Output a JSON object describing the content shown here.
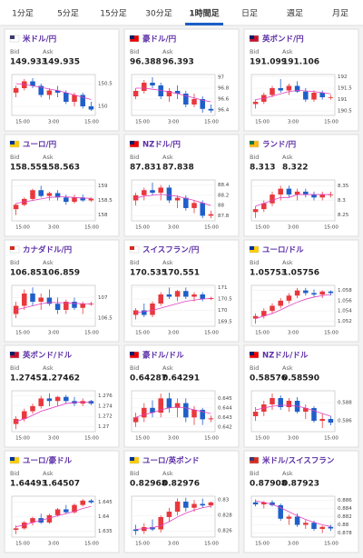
{
  "tabs": [
    "1分足",
    "5分足",
    "15分足",
    "30分足",
    "1時間足",
    "日足",
    "週足",
    "月足"
  ],
  "active_tab": 4,
  "bid_label": "Bid",
  "ask_label": "Ask",
  "x_labels": [
    "15:00",
    "3:00",
    "15:00"
  ],
  "up_color": "#e8383d",
  "down_color": "#1f5fc9",
  "ma_color": "#e040c0",
  "pairs": [
    {
      "name": "米ドル/円",
      "bid": "149.933",
      "ask": "149.935",
      "ylim": [
        149.8,
        150.7
      ],
      "yticks": [
        150,
        150.5
      ],
      "candles": [
        [
          150.3,
          150.45,
          150.2,
          150.4
        ],
        [
          150.4,
          150.6,
          150.35,
          150.55
        ],
        [
          150.55,
          150.62,
          150.4,
          150.45
        ],
        [
          150.45,
          150.5,
          150.2,
          150.25
        ],
        [
          150.25,
          150.4,
          150.15,
          150.35
        ],
        [
          150.35,
          150.45,
          150.2,
          150.3
        ],
        [
          150.3,
          150.35,
          150.05,
          150.1
        ],
        [
          150.1,
          150.3,
          150.0,
          150.25
        ],
        [
          150.25,
          150.3,
          149.95,
          150.0
        ],
        [
          150.0,
          150.1,
          149.9,
          149.93
        ]
      ],
      "ma": [
        150.5,
        150.48,
        150.45,
        150.42,
        150.38,
        150.35,
        150.3,
        150.25,
        150.2,
        150.15
      ]
    },
    {
      "name": "豪ドル/円",
      "bid": "96.388",
      "ask": "96.393",
      "ylim": [
        96.3,
        97.05
      ],
      "yticks": [
        96.4,
        96.6,
        96.8,
        97
      ],
      "candles": [
        [
          96.65,
          96.8,
          96.6,
          96.75
        ],
        [
          96.75,
          96.95,
          96.7,
          96.9
        ],
        [
          96.9,
          97.0,
          96.8,
          96.85
        ],
        [
          96.85,
          96.9,
          96.6,
          96.65
        ],
        [
          96.65,
          96.8,
          96.55,
          96.75
        ],
        [
          96.75,
          96.85,
          96.6,
          96.7
        ],
        [
          96.7,
          96.75,
          96.45,
          96.5
        ],
        [
          96.5,
          96.7,
          96.45,
          96.6
        ],
        [
          96.6,
          96.65,
          96.35,
          96.42
        ],
        [
          96.42,
          96.5,
          96.35,
          96.39
        ]
      ],
      "ma": [
        96.8,
        96.8,
        96.78,
        96.76,
        96.73,
        96.7,
        96.66,
        96.62,
        96.58,
        96.55
      ]
    },
    {
      "name": "英ポンド/円",
      "bid": "191.099",
      "ask": "191.106",
      "ylim": [
        190.3,
        192.1
      ],
      "yticks": [
        190.5,
        191,
        191.5,
        192
      ],
      "candles": [
        [
          190.8,
          191.0,
          190.6,
          190.9
        ],
        [
          190.9,
          191.3,
          190.8,
          191.2
        ],
        [
          191.2,
          191.6,
          191.1,
          191.5
        ],
        [
          191.5,
          191.9,
          191.3,
          191.4
        ],
        [
          191.4,
          191.7,
          191.2,
          191.6
        ],
        [
          191.6,
          191.8,
          191.3,
          191.35
        ],
        [
          191.35,
          191.5,
          190.9,
          191.0
        ],
        [
          191.0,
          191.4,
          190.9,
          191.3
        ],
        [
          191.3,
          191.4,
          191.0,
          191.1
        ],
        [
          191.1,
          191.2,
          191.0,
          191.1
        ]
      ],
      "ma": [
        191.0,
        191.05,
        191.15,
        191.25,
        191.35,
        191.4,
        191.38,
        191.35,
        191.3,
        191.25
      ]
    },
    {
      "name": "ユーロ/円",
      "bid": "158.559",
      "ask": "158.563",
      "ylim": [
        157.8,
        159.2
      ],
      "yticks": [
        158,
        158.5,
        159
      ],
      "candles": [
        [
          158.2,
          158.4,
          158.0,
          158.35
        ],
        [
          158.35,
          158.6,
          158.3,
          158.55
        ],
        [
          158.55,
          158.9,
          158.5,
          158.85
        ],
        [
          158.85,
          159.0,
          158.6,
          158.65
        ],
        [
          158.65,
          158.8,
          158.5,
          158.75
        ],
        [
          158.75,
          158.85,
          158.5,
          158.6
        ],
        [
          158.6,
          158.7,
          158.35,
          158.45
        ],
        [
          158.45,
          158.7,
          158.4,
          158.6
        ],
        [
          158.6,
          158.7,
          158.45,
          158.5
        ],
        [
          158.5,
          158.6,
          158.45,
          158.56
        ]
      ],
      "ma": [
        158.4,
        158.45,
        158.5,
        158.55,
        158.6,
        158.62,
        158.62,
        158.6,
        158.58,
        158.57
      ]
    },
    {
      "name": "NZドル/円",
      "bid": "87.831",
      "ask": "87.838",
      "ylim": [
        87.7,
        88.5
      ],
      "yticks": [
        87.8,
        88,
        88.2,
        88.4
      ],
      "candles": [
        [
          88.1,
          88.25,
          88.0,
          88.2
        ],
        [
          88.2,
          88.35,
          88.1,
          88.3
        ],
        [
          88.3,
          88.45,
          88.2,
          88.25
        ],
        [
          88.25,
          88.4,
          88.1,
          88.35
        ],
        [
          88.35,
          88.4,
          88.05,
          88.1
        ],
        [
          88.1,
          88.2,
          87.95,
          88.15
        ],
        [
          88.15,
          88.2,
          87.9,
          87.95
        ],
        [
          87.95,
          88.1,
          87.85,
          88.05
        ],
        [
          88.05,
          88.1,
          87.75,
          87.8
        ],
        [
          87.8,
          87.9,
          87.75,
          87.83
        ]
      ],
      "ma": [
        88.15,
        88.18,
        88.2,
        88.22,
        88.2,
        88.18,
        88.14,
        88.1,
        88.05,
        88.0
      ]
    },
    {
      "name": "ランド/円",
      "bid": "8.313",
      "ask": "8.322",
      "ylim": [
        8.23,
        8.37
      ],
      "yticks": [
        8.25,
        8.3,
        8.35
      ],
      "candles": [
        [
          8.26,
          8.28,
          8.24,
          8.27
        ],
        [
          8.27,
          8.3,
          8.26,
          8.29
        ],
        [
          8.29,
          8.33,
          8.28,
          8.32
        ],
        [
          8.32,
          8.35,
          8.3,
          8.34
        ],
        [
          8.34,
          8.35,
          8.31,
          8.32
        ],
        [
          8.32,
          8.34,
          8.3,
          8.33
        ],
        [
          8.33,
          8.34,
          8.31,
          8.32
        ],
        [
          8.32,
          8.33,
          8.3,
          8.31
        ],
        [
          8.31,
          8.33,
          8.3,
          8.32
        ],
        [
          8.32,
          8.33,
          8.31,
          8.32
        ]
      ],
      "ma": [
        8.28,
        8.29,
        8.3,
        8.31,
        8.31,
        8.32,
        8.32,
        8.32,
        8.32,
        8.32
      ]
    },
    {
      "name": "カナダドル/円",
      "bid": "106.853",
      "ask": "106.859",
      "ylim": [
        106.3,
        107.3
      ],
      "yticks": [
        106.5,
        107
      ],
      "candles": [
        [
          106.6,
          106.9,
          106.5,
          106.8
        ],
        [
          106.8,
          107.2,
          106.7,
          107.1
        ],
        [
          107.1,
          107.25,
          106.8,
          106.9
        ],
        [
          106.9,
          107.1,
          106.7,
          107.0
        ],
        [
          107.0,
          107.2,
          106.8,
          106.85
        ],
        [
          106.85,
          107.0,
          106.6,
          106.7
        ],
        [
          106.7,
          106.95,
          106.6,
          106.9
        ],
        [
          106.9,
          107.0,
          106.7,
          106.75
        ],
        [
          106.75,
          106.9,
          106.6,
          106.85
        ],
        [
          106.85,
          106.9,
          106.8,
          106.85
        ]
      ],
      "ma": [
        106.7,
        106.75,
        106.8,
        106.85,
        106.88,
        106.88,
        106.87,
        106.86,
        106.85,
        106.85
      ]
    },
    {
      "name": "スイスフラン/円",
      "bid": "170.535",
      "ask": "170.551",
      "ylim": [
        169.3,
        171.1
      ],
      "yticks": [
        169.5,
        170,
        170.5,
        171
      ],
      "candles": [
        [
          169.8,
          170.1,
          169.6,
          170.0
        ],
        [
          170.0,
          170.3,
          169.7,
          169.8
        ],
        [
          169.8,
          170.4,
          169.7,
          170.3
        ],
        [
          170.3,
          170.8,
          170.2,
          170.7
        ],
        [
          170.7,
          171.0,
          170.5,
          170.6
        ],
        [
          170.6,
          170.9,
          170.4,
          170.85
        ],
        [
          170.85,
          171.0,
          170.5,
          170.6
        ],
        [
          170.6,
          170.8,
          170.4,
          170.7
        ],
        [
          170.7,
          170.8,
          170.4,
          170.5
        ],
        [
          170.5,
          170.6,
          170.45,
          170.54
        ]
      ],
      "ma": [
        169.9,
        169.95,
        170.0,
        170.1,
        170.2,
        170.3,
        170.4,
        170.45,
        170.5,
        170.52
      ]
    },
    {
      "name": "ユーロ/ドル",
      "bid": "1.05753",
      "ask": "1.05756",
      "ylim": [
        1.051,
        1.059
      ],
      "yticks": [
        1.052,
        1.054,
        1.056,
        1.058
      ],
      "candles": [
        [
          1.0525,
          1.0535,
          1.0515,
          1.053
        ],
        [
          1.053,
          1.0545,
          1.0525,
          1.054
        ],
        [
          1.054,
          1.0555,
          1.0535,
          1.055
        ],
        [
          1.055,
          1.0565,
          1.0545,
          1.056
        ],
        [
          1.056,
          1.0575,
          1.0555,
          1.057
        ],
        [
          1.057,
          1.0585,
          1.0565,
          1.058
        ],
        [
          1.058,
          1.0585,
          1.057,
          1.0575
        ],
        [
          1.0575,
          1.0582,
          1.0568,
          1.0572
        ],
        [
          1.0572,
          1.058,
          1.0565,
          1.0578
        ],
        [
          1.0578,
          1.058,
          1.057,
          1.0575
        ]
      ],
      "ma": [
        1.0525,
        1.053,
        1.0535,
        1.0542,
        1.055,
        1.0557,
        1.0563,
        1.0567,
        1.057,
        1.0572
      ]
    },
    {
      "name": "英ポンド/ドル",
      "bid": "1.27452",
      "ask": "1.27462",
      "ylim": [
        1.269,
        1.277
      ],
      "yticks": [
        1.27,
        1.272,
        1.274,
        1.276
      ],
      "candles": [
        [
          1.2705,
          1.272,
          1.2695,
          1.2715
        ],
        [
          1.2715,
          1.2735,
          1.271,
          1.273
        ],
        [
          1.273,
          1.2745,
          1.2725,
          1.274
        ],
        [
          1.274,
          1.276,
          1.2735,
          1.2755
        ],
        [
          1.2755,
          1.2765,
          1.274,
          1.275
        ],
        [
          1.275,
          1.276,
          1.274,
          1.2758
        ],
        [
          1.2758,
          1.2762,
          1.2745,
          1.275
        ],
        [
          1.275,
          1.2758,
          1.274,
          1.2745
        ],
        [
          1.2745,
          1.2755,
          1.274,
          1.275
        ],
        [
          1.275,
          1.2752,
          1.2742,
          1.2745
        ]
      ],
      "ma": [
        1.271,
        1.2715,
        1.2722,
        1.273,
        1.2735,
        1.274,
        1.2745,
        1.2747,
        1.2748,
        1.2748
      ]
    },
    {
      "name": "豪ドル/ドル",
      "bid": "0.64287",
      "ask": "0.64291",
      "ylim": [
        0.6415,
        0.6458
      ],
      "yticks": [
        0.642,
        0.643,
        0.644,
        0.645
      ],
      "candles": [
        [
          0.6425,
          0.6435,
          0.642,
          0.643
        ],
        [
          0.643,
          0.6445,
          0.6425,
          0.644
        ],
        [
          0.644,
          0.6448,
          0.643,
          0.6435
        ],
        [
          0.6435,
          0.6455,
          0.643,
          0.645
        ],
        [
          0.645,
          0.6456,
          0.6435,
          0.644
        ],
        [
          0.644,
          0.645,
          0.643,
          0.6445
        ],
        [
          0.6445,
          0.645,
          0.6425,
          0.643
        ],
        [
          0.643,
          0.6442,
          0.6422,
          0.6438
        ],
        [
          0.6438,
          0.644,
          0.6422,
          0.6428
        ],
        [
          0.6428,
          0.6432,
          0.6425,
          0.6429
        ]
      ],
      "ma": [
        0.643,
        0.6433,
        0.6435,
        0.6438,
        0.644,
        0.6441,
        0.644,
        0.6438,
        0.6436,
        0.6434
      ]
    },
    {
      "name": "NZドル/ドル",
      "bid": "0.58576",
      "ask": "0.58590",
      "ylim": [
        0.5848,
        0.5893
      ],
      "yticks": [
        0.586,
        0.588
      ],
      "candles": [
        [
          0.5865,
          0.5875,
          0.586,
          0.587
        ],
        [
          0.587,
          0.5882,
          0.5865,
          0.5878
        ],
        [
          0.5878,
          0.589,
          0.5872,
          0.5885
        ],
        [
          0.5885,
          0.5888,
          0.5872,
          0.5875
        ],
        [
          0.5875,
          0.5885,
          0.587,
          0.5882
        ],
        [
          0.5882,
          0.5886,
          0.5868,
          0.587
        ],
        [
          0.587,
          0.5878,
          0.5862,
          0.5874
        ],
        [
          0.5874,
          0.5876,
          0.5858,
          0.586
        ],
        [
          0.586,
          0.5868,
          0.5852,
          0.5862
        ],
        [
          0.5862,
          0.5865,
          0.5855,
          0.5858
        ]
      ],
      "ma": [
        0.5872,
        0.5874,
        0.5876,
        0.5877,
        0.5877,
        0.5876,
        0.5874,
        0.5871,
        0.5868,
        0.5865
      ]
    },
    {
      "name": "ユーロ/豪ドル",
      "bid": "1.64493",
      "ask": "1.64507",
      "ylim": [
        1.633,
        1.647
      ],
      "yticks": [
        1.635,
        1.64,
        1.645
      ],
      "candles": [
        [
          1.6355,
          1.637,
          1.634,
          1.636
        ],
        [
          1.636,
          1.6385,
          1.6355,
          1.638
        ],
        [
          1.638,
          1.64,
          1.637,
          1.6395
        ],
        [
          1.6395,
          1.641,
          1.6375,
          1.638
        ],
        [
          1.638,
          1.641,
          1.6375,
          1.6405
        ],
        [
          1.6405,
          1.643,
          1.64,
          1.6425
        ],
        [
          1.6425,
          1.644,
          1.641,
          1.6415
        ],
        [
          1.6415,
          1.6445,
          1.641,
          1.644
        ],
        [
          1.644,
          1.646,
          1.6435,
          1.6455
        ],
        [
          1.6455,
          1.646,
          1.6445,
          1.6449
        ]
      ],
      "ma": [
        1.6365,
        1.6372,
        1.638,
        1.6388,
        1.6395,
        1.6403,
        1.641,
        1.6418,
        1.6428,
        1.6435
      ]
    },
    {
      "name": "ユーロ/英ポンド",
      "bid": "0.82968",
      "ask": "0.82976",
      "ylim": [
        0.8252,
        0.8305
      ],
      "yticks": [
        0.826,
        0.828,
        0.83
      ],
      "candles": [
        [
          0.8262,
          0.8268,
          0.8255,
          0.826
        ],
        [
          0.826,
          0.827,
          0.8256,
          0.8265
        ],
        [
          0.8265,
          0.8275,
          0.826,
          0.8262
        ],
        [
          0.8262,
          0.828,
          0.8258,
          0.8278
        ],
        [
          0.8278,
          0.829,
          0.8272,
          0.8285
        ],
        [
          0.8285,
          0.8302,
          0.828,
          0.8298
        ],
        [
          0.8298,
          0.8303,
          0.8285,
          0.829
        ],
        [
          0.829,
          0.83,
          0.8285,
          0.8295
        ],
        [
          0.8295,
          0.8302,
          0.829,
          0.8293
        ],
        [
          0.8293,
          0.8298,
          0.829,
          0.8297
        ]
      ],
      "ma": [
        0.8262,
        0.8263,
        0.8264,
        0.8267,
        0.8272,
        0.8278,
        0.8283,
        0.8287,
        0.829,
        0.8292
      ]
    },
    {
      "name": "米ドル/スイスフラン",
      "bid": "0.87908",
      "ask": "0.87923",
      "ylim": [
        0.877,
        0.887
      ],
      "yticks": [
        0.878,
        0.88,
        0.882,
        0.884,
        0.886
      ],
      "candles": [
        [
          0.8855,
          0.8862,
          0.8845,
          0.885
        ],
        [
          0.885,
          0.8858,
          0.884,
          0.8855
        ],
        [
          0.8855,
          0.886,
          0.8845,
          0.8848
        ],
        [
          0.8848,
          0.8852,
          0.881,
          0.8815
        ],
        [
          0.8815,
          0.8825,
          0.88,
          0.882
        ],
        [
          0.882,
          0.8828,
          0.8795,
          0.88
        ],
        [
          0.88,
          0.8812,
          0.879,
          0.8805
        ],
        [
          0.8805,
          0.881,
          0.8785,
          0.879
        ],
        [
          0.879,
          0.8798,
          0.878,
          0.8795
        ],
        [
          0.8795,
          0.88,
          0.8785,
          0.8791
        ]
      ],
      "ma": [
        0.8858,
        0.8855,
        0.885,
        0.8842,
        0.8832,
        0.8822,
        0.8813,
        0.8806,
        0.88,
        0.8796
      ]
    }
  ]
}
